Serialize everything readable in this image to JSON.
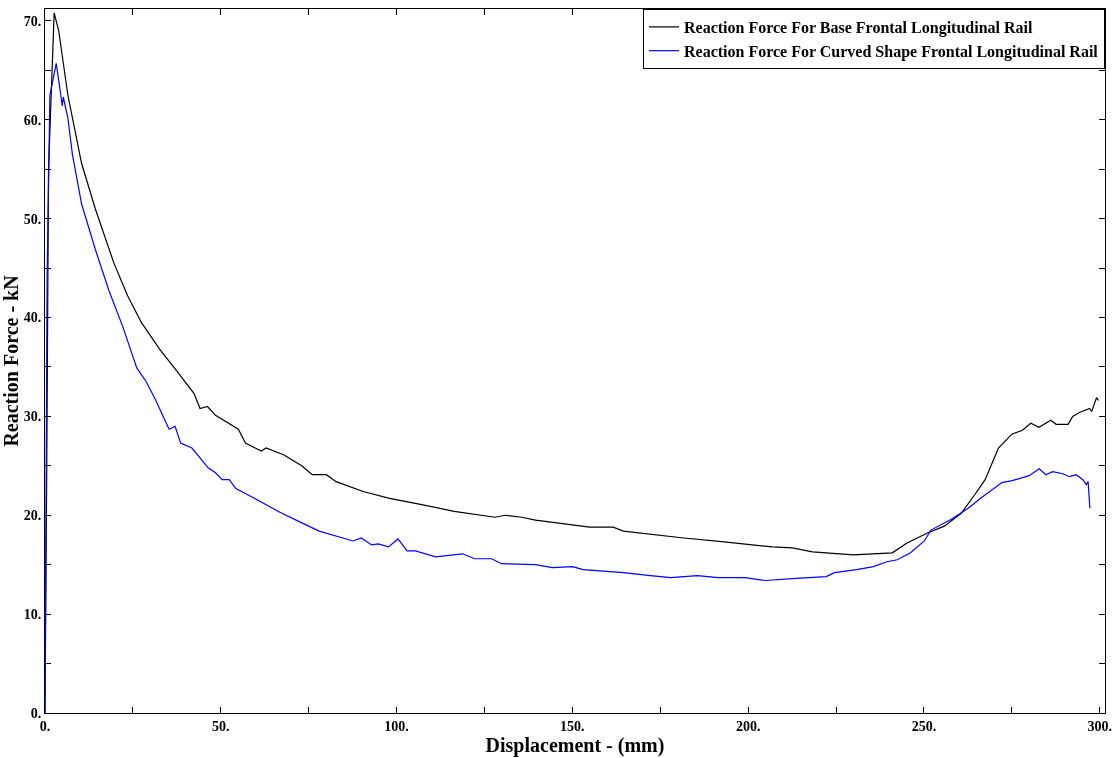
{
  "chart_data": {
    "type": "line",
    "xlabel": "Displacement - (mm)",
    "ylabel": "Reaction Force - kN",
    "legend": "top right",
    "grid": false,
    "marker": "none",
    "line_style": "solid",
    "xlim": [
      0,
      301.5
    ],
    "ylim": [
      0,
      71.2
    ],
    "xticks": [
      {
        "value": 0,
        "label": "0."
      },
      {
        "value": 25,
        "label": null
      },
      {
        "value": 50,
        "label": "50."
      },
      {
        "value": 75,
        "label": null
      },
      {
        "value": 100,
        "label": "100."
      },
      {
        "value": 125,
        "label": null
      },
      {
        "value": 150,
        "label": "150."
      },
      {
        "value": 175,
        "label": null
      },
      {
        "value": 200,
        "label": "200."
      },
      {
        "value": 225,
        "label": null
      },
      {
        "value": 250,
        "label": "250."
      },
      {
        "value": 275,
        "label": null
      },
      {
        "value": 300,
        "label": "300."
      }
    ],
    "yticks": [
      {
        "value": 0,
        "label": "0."
      },
      {
        "value": 5,
        "label": null
      },
      {
        "value": 10,
        "label": "10."
      },
      {
        "value": 15,
        "label": null
      },
      {
        "value": 20,
        "label": "20."
      },
      {
        "value": 25,
        "label": null
      },
      {
        "value": 30,
        "label": "30."
      },
      {
        "value": 35,
        "label": null
      },
      {
        "value": 40,
        "label": "40."
      },
      {
        "value": 45,
        "label": null
      },
      {
        "value": 50,
        "label": "50."
      },
      {
        "value": 55,
        "label": null
      },
      {
        "value": 60,
        "label": "60."
      },
      {
        "value": 65,
        "label": null
      },
      {
        "value": 70,
        "label": "70."
      }
    ],
    "series": [
      {
        "name": "Reaction Force For Base Frontal Longitudinal Rail",
        "color": "#000000",
        "x": [
          0,
          0.5,
          1,
          2.6,
          3.9,
          6.5,
          10.4,
          14.3,
          19.6,
          23.5,
          27.4,
          32.6,
          37.9,
          42.4,
          44.1,
          46.2,
          48.5,
          55,
          57,
          61.5,
          62.9,
          68,
          73,
          76,
          80,
          82.8,
          90.5,
          98,
          106.8,
          116.4,
          128,
          130.9,
          135.6,
          139.5,
          154.9,
          161.6,
          164.5,
          181.7,
          193.2,
          206.8,
          212.6,
          218.3,
          229.9,
          241,
          245.2,
          251,
          255.8,
          260.6,
          264.5,
          267.4,
          271.2,
          275,
          278,
          280.4,
          282.7,
          286.1,
          287.6,
          291,
          292.3,
          294.2,
          297.1,
          297.7,
          299.1,
          299.6
        ],
        "values": [
          0,
          25,
          55,
          70.8,
          69.0,
          62.5,
          55.6,
          51.0,
          45.5,
          42.2,
          39.5,
          36.8,
          34.4,
          32.3,
          30.8,
          31.0,
          30.1,
          28.7,
          27.3,
          26.5,
          26.8,
          26.1,
          25.0,
          24.1,
          24.1,
          23.4,
          22.4,
          21.7,
          21.1,
          20.4,
          19.8,
          20.0,
          19.8,
          19.5,
          18.8,
          18.8,
          18.4,
          17.7,
          17.3,
          16.8,
          16.7,
          16.3,
          16.0,
          16.2,
          17.2,
          18.2,
          18.9,
          20.2,
          22.1,
          23.6,
          26.8,
          28.2,
          28.6,
          29.3,
          28.9,
          29.6,
          29.2,
          29.2,
          30.0,
          30.4,
          30.8,
          30.5,
          31.9,
          31.6
        ]
      },
      {
        "name": "Reaction Force For Curved Shape Frontal Longitudinal Rail",
        "color": "#0000ff",
        "x": [
          0,
          0.6,
          1.4,
          3.2,
          4.5,
          4.9,
          5.2,
          6.5,
          7.8,
          10.4,
          14.3,
          18.2,
          22.2,
          26.1,
          28.8,
          31.4,
          35.3,
          37,
          38.6,
          41.8,
          46.4,
          48.5,
          50.4,
          52.4,
          54.3,
          60.2,
          66.8,
          73.2,
          78,
          87.6,
          90,
          92.9,
          94.8,
          97.7,
          100.4,
          103,
          105.4,
          111.1,
          118.8,
          122.2,
          127,
          129.9,
          139.5,
          144.3,
          150.1,
          153,
          164.5,
          172.2,
          178,
          185.6,
          191.4,
          199.1,
          204.9,
          212.6,
          222.2,
          224.6,
          230.9,
          235.6,
          239.5,
          242.4,
          246.2,
          250.1,
          252,
          257.8,
          262.6,
          266.4,
          272.2,
          275.1,
          279.9,
          282.8,
          284.7,
          286.6,
          289.5,
          291.4,
          293.3,
          295.2,
          296.2,
          296.7,
          297.2
        ],
        "values": [
          0,
          44,
          62.5,
          65.7,
          62.5,
          61.4,
          62.3,
          60.2,
          56.5,
          51.5,
          46.9,
          42.7,
          39.0,
          34.9,
          33.5,
          31.7,
          28.7,
          29.0,
          27.3,
          26.8,
          24.8,
          24.3,
          23.6,
          23.6,
          22.7,
          21.6,
          20.3,
          19.2,
          18.4,
          17.4,
          17.7,
          17.0,
          17.1,
          16.8,
          17.6,
          16.4,
          16.4,
          15.8,
          16.1,
          15.6,
          15.6,
          15.1,
          15.0,
          14.7,
          14.8,
          14.5,
          14.2,
          13.9,
          13.7,
          13.9,
          13.7,
          13.7,
          13.4,
          13.6,
          13.8,
          14.2,
          14.5,
          14.8,
          15.3,
          15.5,
          16.2,
          17.4,
          18.5,
          19.6,
          20.7,
          21.8,
          23.3,
          23.5,
          24.0,
          24.7,
          24.1,
          24.4,
          24.2,
          23.9,
          24.1,
          23.6,
          23.1,
          23.4,
          20.7
        ]
      }
    ]
  }
}
